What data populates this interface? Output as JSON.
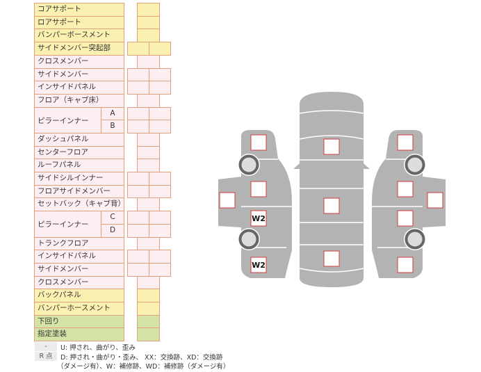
{
  "rows": [
    {
      "label": "コアサポート",
      "color": "yellow",
      "boxes": "single"
    },
    {
      "label": "ロアサポート",
      "color": "yellow",
      "boxes": "single"
    },
    {
      "label": "バンパーボースメント",
      "color": "yellow",
      "boxes": "single"
    },
    {
      "label": "サイドメンバー突起部",
      "color": "yellow",
      "boxes": "double"
    },
    {
      "label": "クロスメンバー",
      "color": "pink",
      "boxes": "single"
    },
    {
      "label": "サイドメンバー",
      "color": "pink",
      "boxes": "double"
    },
    {
      "label": "インサイドパネル",
      "color": "pink",
      "boxes": "double"
    },
    {
      "label": "フロア（キャブ床）",
      "color": "pink",
      "boxes": "single"
    },
    {
      "label": "ピラーインナー",
      "color": "pink",
      "boxes": "double",
      "subs": [
        "A",
        "B"
      ]
    },
    {
      "label": "ダッシュパネル",
      "color": "pink",
      "boxes": "single"
    },
    {
      "label": "センターフロア",
      "color": "pink",
      "boxes": "single"
    },
    {
      "label": "ルーフパネル",
      "color": "pink",
      "boxes": "single"
    },
    {
      "label": "サイドシルインナー",
      "color": "pink",
      "boxes": "double"
    },
    {
      "label": "フロアサイドメンバー",
      "color": "pink",
      "boxes": "double"
    },
    {
      "label": "セットバック（キャブ背）",
      "color": "pink",
      "boxes": "single"
    },
    {
      "label": "ピラーインナー",
      "color": "pink",
      "boxes": "double",
      "subs": [
        "C",
        "D"
      ]
    },
    {
      "label": "トランクフロア",
      "color": "pink",
      "boxes": "single"
    },
    {
      "label": "インサイドパネル",
      "color": "pink",
      "boxes": "double"
    },
    {
      "label": "サイドメンバー",
      "color": "pink",
      "boxes": "double"
    },
    {
      "label": "クロスメンバー",
      "color": "pink",
      "boxes": "single"
    },
    {
      "label": "バックパネル",
      "color": "yellow",
      "boxes": "single"
    },
    {
      "label": "バンパーホースメント",
      "color": "yellow",
      "boxes": "single"
    },
    {
      "label": "下回り",
      "color": "green",
      "boxes": "single"
    },
    {
      "label": "指定塗装",
      "color": "green",
      "boxes": "single"
    }
  ],
  "legend": {
    "key1": "-",
    "text1": "U: 押され、曲がり、歪み",
    "key2": "R 点",
    "text2": "D: 押され・曲がり・歪み、 XX：交換跡、XD：交換跡",
    "text3": "（ダメージ有）、W：補修跡、WD：補修跡（ダメージ有）"
  },
  "diagram": {
    "marks": [
      "",
      "",
      "",
      "W2",
      "W2",
      "",
      "",
      "",
      "",
      "",
      "",
      "",
      ""
    ],
    "body_color": "#b3b3b3",
    "box_border_color": "#d03c3c"
  }
}
